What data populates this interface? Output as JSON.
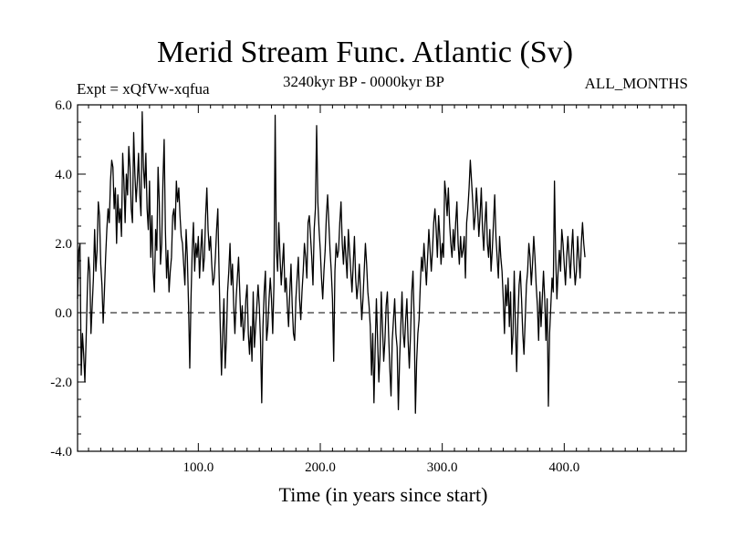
{
  "chart_data": {
    "type": "line",
    "title": "Merid Stream Func. Atlantic (Sv)",
    "subtitle_left": "Expt = xQfVw-xqfua",
    "subtitle_center": "3240kyr BP - 0000kyr BP",
    "subtitle_right": "ALL_MONTHS",
    "xlabel": "Time (in years since start)",
    "ylabel": "",
    "xlim": [
      1,
      500
    ],
    "ylim": [
      -4.0,
      6.0
    ],
    "xticks": [
      100,
      200,
      300,
      400
    ],
    "xtick_labels": [
      "100.0",
      "200.0",
      "300.0",
      "400.0"
    ],
    "yticks": [
      -4,
      -2,
      0,
      2,
      4,
      6
    ],
    "ytick_labels": [
      "-4.0",
      "-2.0",
      "0.0",
      "2.0",
      "4.0",
      "6.0"
    ],
    "reference_line": {
      "y": 0,
      "style": "dashed"
    },
    "series": [
      {
        "name": "Merid Stream Func. Atlantic",
        "x_start": 1,
        "x_step": 1,
        "values": [
          0.4,
          1.8,
          2.0,
          -1.8,
          -0.6,
          -1.2,
          -2.0,
          -0.8,
          0.6,
          1.6,
          1.2,
          -0.6,
          0.2,
          1.0,
          2.4,
          1.2,
          1.8,
          3.2,
          2.8,
          1.4,
          0.8,
          -0.3,
          0.6,
          1.6,
          2.4,
          3.0,
          2.6,
          3.8,
          4.4,
          4.2,
          3.0,
          3.6,
          2.0,
          3.4,
          2.6,
          3.0,
          2.2,
          4.6,
          3.8,
          2.6,
          4.0,
          3.4,
          4.8,
          4.2,
          3.0,
          2.6,
          5.2,
          4.0,
          3.2,
          3.8,
          4.6,
          3.4,
          2.8,
          5.8,
          4.2,
          3.6,
          4.6,
          3.0,
          2.4,
          3.8,
          1.6,
          2.8,
          1.2,
          0.6,
          2.4,
          1.8,
          4.2,
          3.2,
          1.4,
          2.0,
          3.8,
          5.0,
          2.4,
          1.0,
          1.8,
          0.6,
          1.2,
          1.6,
          2.8,
          3.0,
          2.4,
          3.8,
          3.2,
          3.6,
          2.8,
          2.2,
          2.0,
          1.4,
          0.8,
          2.4,
          1.6,
          0.2,
          -1.6,
          0.4,
          1.8,
          2.6,
          1.2,
          2.0,
          1.6,
          2.2,
          1.0,
          1.8,
          2.4,
          1.2,
          1.6,
          2.8,
          3.6,
          2.4,
          1.8,
          2.2,
          1.4,
          0.8,
          1.0,
          1.6,
          2.4,
          3.0,
          1.2,
          -0.4,
          -1.8,
          -0.6,
          0.4,
          -1.6,
          -0.8,
          0.6,
          1.2,
          2.0,
          0.8,
          1.4,
          0.2,
          -0.6,
          0.4,
          1.0,
          1.6,
          0.6,
          -0.4,
          0.2,
          -0.8,
          -0.4,
          0.4,
          0.8,
          -0.6,
          -1.2,
          -0.4,
          -1.4,
          0.6,
          -1.0,
          -0.4,
          0.2,
          0.8,
          0.2,
          -0.8,
          -2.6,
          -0.4,
          0.6,
          1.2,
          -0.8,
          -0.4,
          0.4,
          1.0,
          0.4,
          -0.6,
          0.8,
          5.7,
          1.8,
          1.2,
          2.6,
          1.6,
          0.8,
          1.4,
          2.0,
          0.6,
          1.0,
          0.2,
          -0.4,
          0.6,
          1.4,
          0.2,
          -0.6,
          -0.8,
          0.4,
          1.0,
          1.6,
          0.4,
          -0.2,
          0.6,
          1.2,
          2.0,
          1.6,
          1.0,
          2.6,
          2.8,
          2.2,
          1.6,
          0.8,
          2.4,
          3.0,
          5.4,
          3.2,
          2.4,
          1.8,
          1.0,
          0.4,
          1.2,
          1.8,
          2.8,
          3.4,
          2.6,
          1.8,
          1.2,
          0.4,
          -1.4,
          1.2,
          2.0,
          1.6,
          1.8,
          2.6,
          3.2,
          2.0,
          1.4,
          2.2,
          1.6,
          1.0,
          2.4,
          1.8,
          1.2,
          0.6,
          1.4,
          2.2,
          1.0,
          0.4,
          0.8,
          1.4,
          0.6,
          -0.2,
          0.4,
          1.2,
          2.0,
          1.4,
          0.6,
          0.2,
          -0.4,
          -1.8,
          -0.6,
          -2.6,
          -1.0,
          0.4,
          -0.8,
          -2.0,
          -1.2,
          0.6,
          -0.4,
          -1.4,
          -0.8,
          0.2,
          0.6,
          -0.6,
          -1.6,
          -2.4,
          -0.8,
          -0.2,
          0.4,
          -0.6,
          -1.0,
          -2.8,
          -1.4,
          -0.4,
          0.6,
          -0.6,
          -1.0,
          -0.2,
          0.4,
          -0.8,
          -1.6,
          -0.6,
          0.6,
          1.2,
          -0.2,
          -2.9,
          -1.4,
          -0.6,
          -0.2,
          0.8,
          1.6,
          1.2,
          2.0,
          1.4,
          0.8,
          1.6,
          2.4,
          1.8,
          1.2,
          1.8,
          2.6,
          3.0,
          2.4,
          1.6,
          2.8,
          2.2,
          1.4,
          2.0,
          1.6,
          3.8,
          3.4,
          2.8,
          3.6,
          2.6,
          2.0,
          1.6,
          2.4,
          1.8,
          2.6,
          3.2,
          2.0,
          1.4,
          2.2,
          1.6,
          1.8,
          2.2,
          1.0,
          2.6,
          3.0,
          3.6,
          4.4,
          3.8,
          3.2,
          2.4,
          2.8,
          3.6,
          3.0,
          2.2,
          2.8,
          3.6,
          2.4,
          1.8,
          2.6,
          3.2,
          2.0,
          1.6,
          2.4,
          1.2,
          1.8,
          2.6,
          3.4,
          2.2,
          1.6,
          1.0,
          2.2,
          1.6,
          1.2,
          0.4,
          -0.6,
          0.8,
          0.2,
          1.0,
          -0.4,
          0.6,
          -1.2,
          -0.6,
          1.2,
          -0.4,
          -1.7,
          -0.2,
          0.8,
          1.2,
          0.4,
          -0.6,
          -1.2,
          -0.2,
          0.8,
          1.2,
          2.0,
          1.6,
          0.8,
          1.4,
          2.2,
          1.6,
          0.8,
          0.2,
          -0.8,
          0.6,
          -0.4,
          0.4,
          1.2,
          0.4,
          -0.8,
          0.4,
          -2.7,
          -0.6,
          0.2,
          1.0,
          0.6,
          3.8,
          1.6,
          0.4,
          1.2,
          1.8,
          1.2,
          2.4,
          2.0,
          1.4,
          0.8,
          1.6,
          2.2,
          1.6,
          1.0,
          1.8,
          2.4,
          1.4,
          0.8,
          1.2,
          2.2,
          1.6,
          1.0,
          2.0,
          2.6,
          2.0,
          1.6
        ],
        "color": "#000000"
      }
    ],
    "grid": false,
    "legend": "none"
  }
}
